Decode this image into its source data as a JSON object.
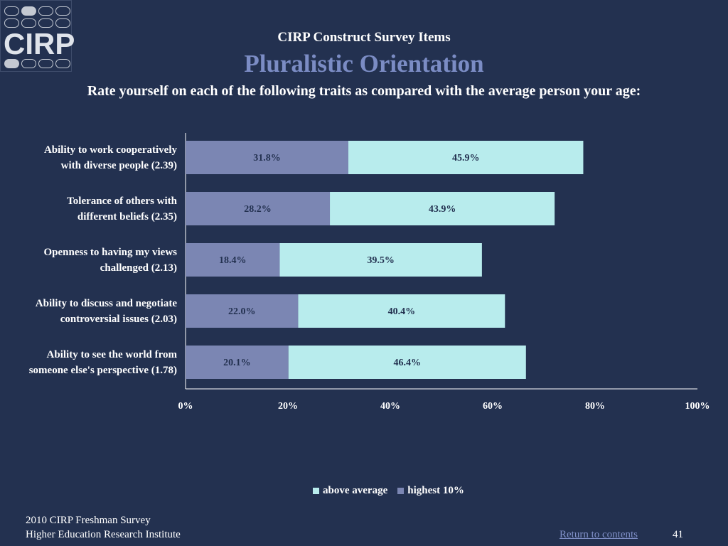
{
  "logo": {
    "text": "CIRP"
  },
  "header": {
    "kicker": "CIRP Construct Survey Items",
    "title": "Pluralistic Orientation",
    "subtitle": "Rate yourself on each of the following traits as compared with the average person your age:"
  },
  "colors": {
    "background": "#233150",
    "highest": "#7b86b3",
    "above": "#b8eced",
    "title": "#7b8cc4"
  },
  "chart_data": {
    "type": "bar",
    "orientation": "horizontal",
    "stacked": true,
    "categories": [
      [
        "Ability to work cooperatively",
        "with diverse people (2.39)"
      ],
      [
        "Tolerance of others with",
        "different beliefs (2.35)"
      ],
      [
        "Openness to having my views",
        "challenged (2.13)"
      ],
      [
        "Ability to discuss and negotiate",
        "controversial issues (2.03)"
      ],
      [
        "Ability to see the world from",
        "someone else's perspective (1.78)"
      ]
    ],
    "series": [
      {
        "name": "highest 10%",
        "values": [
          31.8,
          28.2,
          18.4,
          22.0,
          20.1
        ],
        "labels": [
          "31.8%",
          "28.2%",
          "18.4%",
          "22.0%",
          "20.1%"
        ],
        "color": "#7b86b3"
      },
      {
        "name": "above average",
        "values": [
          45.9,
          43.9,
          39.5,
          40.4,
          46.4
        ],
        "labels": [
          "45.9%",
          "43.9%",
          "39.5%",
          "40.4%",
          "46.4%"
        ],
        "color": "#b8eced"
      }
    ],
    "xlim": [
      0,
      100
    ],
    "xticks": [
      "0%",
      "20%",
      "40%",
      "60%",
      "80%",
      "100%"
    ],
    "grid": false,
    "legend": {
      "position": "bottom",
      "entries": [
        {
          "name": "above average",
          "color": "#b8eced"
        },
        {
          "name": "highest 10%",
          "color": "#7b86b3"
        }
      ]
    }
  },
  "footer": {
    "line1": "2010 CIRP Freshman Survey",
    "line2": "Higher Education Research Institute",
    "link": "Return to contents",
    "page": "41"
  }
}
